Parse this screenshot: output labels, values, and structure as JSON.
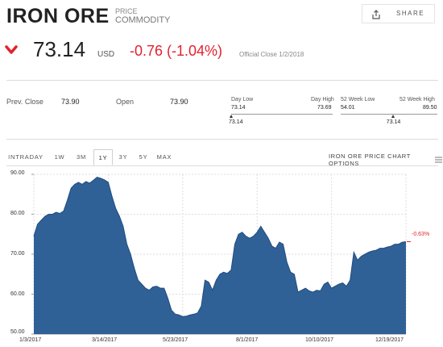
{
  "header": {
    "title": "IRON ORE",
    "subtitle_top": "PRICE",
    "subtitle_bottom": "COMMODITY",
    "share_label": "SHARE",
    "share_icon": "share-icon"
  },
  "quote": {
    "direction_icon": "chevron-down-icon",
    "price": "73.14",
    "currency": "USD",
    "change": "-0.76 (-1.04%)",
    "close_note": "Official Close 1/2/2018",
    "change_color": "#e3212f"
  },
  "stats": {
    "prev_close_label": "Prev. Close",
    "prev_close_value": "73.90",
    "open_label": "Open",
    "open_value": "73.90",
    "day_low_label": "Day Low",
    "day_high_label": "Day High",
    "day_low_value": "73.14",
    "day_high_value": "73.69",
    "day_marker_value": "73.14",
    "day_marker_fraction": 0.0,
    "week52_low_label": "52 Week Low",
    "week52_high_label": "52 Week High",
    "week52_low_value": "54.01",
    "week52_high_value": "89.50",
    "week52_marker_value": "73.14",
    "week52_marker_fraction": 0.54
  },
  "tabs": [
    {
      "label": "INTRADAY",
      "active": false
    },
    {
      "label": "1W",
      "active": false
    },
    {
      "label": "3M",
      "active": false
    },
    {
      "label": "1Y",
      "active": true
    },
    {
      "label": "3Y",
      "active": false
    },
    {
      "label": "5Y",
      "active": false
    },
    {
      "label": "MAX",
      "active": false
    }
  ],
  "chart_options_label": "IRON ORE PRICE CHART OPTIONS",
  "chart_data": {
    "type": "area",
    "title": "",
    "xlabel": "",
    "ylabel": "",
    "ylim": [
      50,
      90
    ],
    "y_ticks": [
      "90.00",
      "80.00",
      "70.00",
      "60.00",
      "50.00"
    ],
    "x_tick_labels": [
      "1/3/2017",
      "3/14/2017",
      "5/23/2017",
      "8/1/2017",
      "10/10/2017",
      "12/19/2017"
    ],
    "x_tick_fractions": [
      0.0,
      0.2,
      0.4,
      0.6,
      0.8,
      1.0
    ],
    "grid": true,
    "fill_color": "#2f6197",
    "line_color": "#204d80",
    "change_annotation": "-0.63%",
    "series": [
      {
        "x": [
          0,
          0.01,
          0.02,
          0.03,
          0.04,
          0.05,
          0.06,
          0.07,
          0.08,
          0.09,
          0.1,
          0.11,
          0.12,
          0.13,
          0.14,
          0.15,
          0.16,
          0.17,
          0.18,
          0.19,
          0.2,
          0.21,
          0.22,
          0.23,
          0.24,
          0.25,
          0.26,
          0.27,
          0.28,
          0.29,
          0.3,
          0.31,
          0.32,
          0.33,
          0.34,
          0.35,
          0.36,
          0.37,
          0.38,
          0.39,
          0.4,
          0.41,
          0.42,
          0.43,
          0.44,
          0.45,
          0.46,
          0.47,
          0.48,
          0.49,
          0.5,
          0.51,
          0.52,
          0.53,
          0.54,
          0.55,
          0.56,
          0.57,
          0.58,
          0.59,
          0.6,
          0.61,
          0.62,
          0.63,
          0.64,
          0.65,
          0.66,
          0.67,
          0.68,
          0.69,
          0.7,
          0.71,
          0.72,
          0.73,
          0.74,
          0.75,
          0.76,
          0.77,
          0.78,
          0.79,
          0.8,
          0.81,
          0.82,
          0.83,
          0.84,
          0.85,
          0.86,
          0.87,
          0.88,
          0.89,
          0.9,
          0.91,
          0.92,
          0.93,
          0.94,
          0.95,
          0.96,
          0.97,
          0.98,
          0.99,
          1.0
        ],
        "values": [
          74.5,
          77.5,
          78.5,
          79.5,
          80.0,
          80.0,
          80.5,
          80.2,
          80.8,
          83.5,
          86.5,
          87.5,
          88.0,
          87.5,
          88.2,
          87.8,
          88.5,
          89.3,
          89.0,
          88.6,
          88.0,
          84.5,
          81.5,
          79.5,
          77.0,
          72.5,
          70.0,
          66.5,
          63.5,
          62.5,
          61.5,
          61.0,
          61.8,
          62.0,
          61.5,
          61.5,
          59.0,
          56.0,
          55.0,
          54.8,
          54.4,
          54.5,
          54.8,
          55.0,
          55.3,
          57.0,
          63.5,
          63.0,
          61.0,
          63.5,
          65.0,
          65.5,
          65.2,
          66.0,
          72.5,
          75.0,
          75.5,
          74.5,
          74.0,
          74.5,
          75.5,
          77.0,
          75.5,
          74.0,
          72.0,
          71.5,
          73.0,
          72.5,
          68.0,
          65.5,
          65.0,
          60.5,
          61.0,
          61.5,
          60.8,
          60.5,
          61.0,
          60.8,
          62.5,
          63.0,
          61.5,
          62.0,
          62.5,
          62.8,
          62.0,
          63.5,
          70.5,
          68.5,
          69.5,
          70.0,
          70.5,
          70.8,
          71.0,
          71.5,
          71.5,
          71.8,
          72.0,
          72.5,
          72.5,
          73.0,
          73.14
        ]
      }
    ]
  }
}
